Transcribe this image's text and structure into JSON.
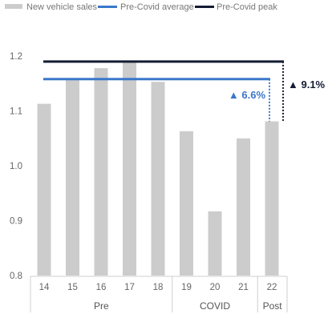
{
  "chart_data": {
    "type": "bar",
    "categories": [
      "14",
      "15",
      "16",
      "17",
      "18",
      "19",
      "20",
      "21",
      "22"
    ],
    "groups": [
      {
        "label": "Pre",
        "categories": [
          "14",
          "15",
          "16",
          "17",
          "18"
        ]
      },
      {
        "label": "COVID",
        "categories": [
          "19",
          "20",
          "21"
        ]
      },
      {
        "label": "Post",
        "categories": [
          "22"
        ]
      }
    ],
    "series": [
      {
        "name": "New vehicle sales",
        "values": [
          1.113,
          1.158,
          1.178,
          1.19,
          1.153,
          1.063,
          0.917,
          1.05,
          1.081
        ]
      }
    ],
    "reference_lines": [
      {
        "name": "Pre-Covid average",
        "value": 1.158
      },
      {
        "name": "Pre-Covid peak",
        "value": 1.19
      }
    ],
    "annotations": [
      {
        "text": "▲ 6.6%",
        "refers_to": "Pre-Covid average"
      },
      {
        "text": "▲ 9.1%",
        "refers_to": "Pre-Covid peak"
      }
    ],
    "ylim": [
      0.8,
      1.2
    ],
    "yticks": [
      "0.8",
      "0.9",
      "1.0",
      "1.1",
      "1.2"
    ],
    "grid": false,
    "legend_position": "top-left",
    "colors": {
      "bars": "#cccccc",
      "average": "#3a78c9",
      "peak": "#141c33"
    }
  }
}
